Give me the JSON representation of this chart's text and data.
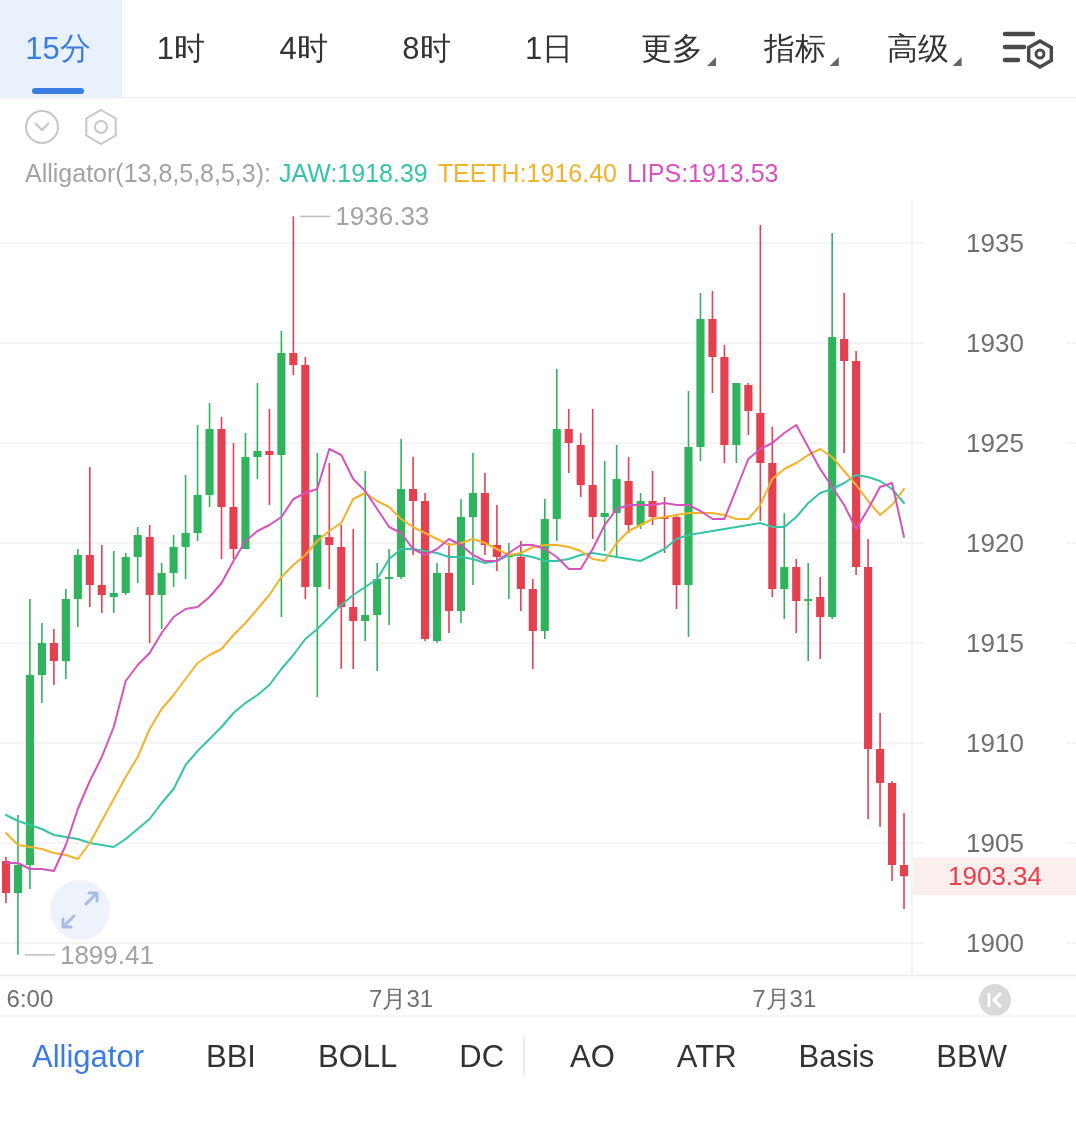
{
  "chart_data": {
    "type": "candlestick",
    "legend_title": "Alligator(13,8,5,8,5,3):",
    "legend": "top",
    "grid": "y",
    "categories": [
      null,
      null,
      "6:00",
      null,
      null,
      null,
      null,
      null,
      null,
      null,
      null,
      null,
      null,
      null,
      null,
      null,
      null,
      null,
      null,
      null,
      null,
      null,
      null,
      null,
      null,
      null,
      null,
      null,
      null,
      null,
      null,
      null,
      null,
      "7月31",
      null,
      null,
      null,
      null,
      null,
      null,
      null,
      null,
      null,
      null,
      null,
      null,
      null,
      null,
      null,
      null,
      null,
      null,
      null,
      null,
      null,
      null,
      null,
      null,
      null,
      null,
      null,
      null,
      null,
      null,
      null,
      "7月31",
      null,
      null,
      null,
      null,
      null,
      null,
      null,
      null,
      null,
      null
    ],
    "ohlc": [
      [
        1904.1,
        1904.3,
        1902.0,
        1902.5
      ],
      [
        1902.5,
        1906.4,
        1899.41,
        1903.9
      ],
      [
        1903.9,
        1917.2,
        1902.7,
        1913.4
      ],
      [
        1913.4,
        1916.0,
        1912.0,
        1915.0
      ],
      [
        1915.0,
        1915.7,
        1912.9,
        1914.1
      ],
      [
        1914.1,
        1917.7,
        1913.2,
        1917.2
      ],
      [
        1917.2,
        1919.7,
        1915.8,
        1919.4
      ],
      [
        1919.4,
        1923.8,
        1916.8,
        1917.9
      ],
      [
        1917.9,
        1919.9,
        1916.5,
        1917.4
      ],
      [
        1917.3,
        1919.6,
        1916.5,
        1917.5
      ],
      [
        1917.5,
        1919.5,
        1917.4,
        1919.3
      ],
      [
        1919.3,
        1920.8,
        1918.0,
        1920.4
      ],
      [
        1920.3,
        1920.9,
        1915.0,
        1917.4
      ],
      [
        1917.4,
        1919.0,
        1915.7,
        1918.5
      ],
      [
        1918.5,
        1920.4,
        1917.8,
        1919.8
      ],
      [
        1919.8,
        1923.4,
        1918.2,
        1920.5
      ],
      [
        1920.5,
        1925.9,
        1920.1,
        1922.4
      ],
      [
        1922.4,
        1927.0,
        1921.8,
        1925.7
      ],
      [
        1925.7,
        1926.3,
        1919.2,
        1921.8
      ],
      [
        1921.8,
        1925.0,
        1919.2,
        1919.7
      ],
      [
        1919.7,
        1925.5,
        1919.7,
        1924.3
      ],
      [
        1924.3,
        1928.0,
        1923.2,
        1924.6
      ],
      [
        1924.6,
        1926.7,
        1921.9,
        1924.4
      ],
      [
        1924.4,
        1930.6,
        1916.3,
        1929.5
      ],
      [
        1929.5,
        1936.33,
        1928.4,
        1928.9
      ],
      [
        1928.9,
        1929.3,
        1917.2,
        1917.8
      ],
      [
        1917.8,
        1924.5,
        1912.3,
        1920.4
      ],
      [
        1920.3,
        1924.0,
        1917.7,
        1919.9
      ],
      [
        1919.8,
        1920.9,
        1913.7,
        1916.8
      ],
      [
        1916.8,
        1920.7,
        1913.7,
        1916.1
      ],
      [
        1916.1,
        1923.6,
        1915.1,
        1916.4
      ],
      [
        1916.4,
        1919.0,
        1913.6,
        1918.2
      ],
      [
        1918.2,
        1919.7,
        1915.9,
        1918.3
      ],
      [
        1918.3,
        1925.2,
        1918.2,
        1922.7
      ],
      [
        1922.7,
        1924.3,
        1919.4,
        1922.1
      ],
      [
        1922.1,
        1922.5,
        1915.1,
        1915.2
      ],
      [
        1915.1,
        1919.0,
        1915.0,
        1918.5
      ],
      [
        1918.5,
        1920.0,
        1915.5,
        1916.6
      ],
      [
        1916.6,
        1922.2,
        1916.0,
        1921.3
      ],
      [
        1921.3,
        1924.5,
        1917.9,
        1922.5
      ],
      [
        1922.5,
        1923.5,
        1919.4,
        1919.9
      ],
      [
        1919.9,
        1921.9,
        1918.6,
        1919.3
      ],
      [
        1919.3,
        1920.0,
        1917.2,
        1919.4
      ],
      [
        1919.3,
        1920.1,
        1916.6,
        1917.7
      ],
      [
        1917.7,
        1918.2,
        1913.7,
        1915.6
      ],
      [
        1915.6,
        1922.2,
        1915.2,
        1921.2
      ],
      [
        1921.2,
        1928.7,
        1920.1,
        1925.7
      ],
      [
        1925.7,
        1926.7,
        1923.5,
        1925.0
      ],
      [
        1924.9,
        1925.5,
        1922.3,
        1922.9
      ],
      [
        1922.9,
        1926.7,
        1920.2,
        1921.3
      ],
      [
        1921.3,
        1924.1,
        1919.6,
        1921.5
      ],
      [
        1921.5,
        1924.9,
        1919.3,
        1923.2
      ],
      [
        1923.1,
        1924.3,
        1920.5,
        1920.9
      ],
      [
        1920.9,
        1922.5,
        1920.7,
        1922.1
      ],
      [
        1922.1,
        1923.6,
        1920.9,
        1921.3
      ],
      [
        1921.3,
        1922.3,
        1919.5,
        1921.2
      ],
      [
        1921.3,
        1921.4,
        1916.7,
        1917.9
      ],
      [
        1917.9,
        1927.6,
        1915.3,
        1924.8
      ],
      [
        1924.8,
        1932.5,
        1924.1,
        1931.2
      ],
      [
        1931.2,
        1932.6,
        1927.5,
        1929.3
      ],
      [
        1929.3,
        1929.9,
        1924.0,
        1924.9
      ],
      [
        1924.9,
        1928.0,
        1924.0,
        1928.0
      ],
      [
        1927.9,
        1928.0,
        1925.4,
        1926.6
      ],
      [
        1926.5,
        1935.9,
        1921.1,
        1924.0
      ],
      [
        1924.0,
        1925.8,
        1917.3,
        1917.7
      ],
      [
        1917.7,
        1921.5,
        1916.2,
        1918.8
      ],
      [
        1918.8,
        1919.2,
        1915.5,
        1917.1
      ],
      [
        1917.1,
        1919.0,
        1914.1,
        1917.2
      ],
      [
        1917.3,
        1918.3,
        1914.2,
        1916.3
      ],
      [
        1916.3,
        1935.5,
        1916.2,
        1930.3
      ],
      [
        1930.2,
        1932.5,
        1924.5,
        1929.1
      ],
      [
        1929.1,
        1929.6,
        1918.4,
        1918.8
      ],
      [
        1918.8,
        1920.2,
        1906.2,
        1909.7
      ],
      [
        1909.7,
        1911.5,
        1905.8,
        1908.0
      ],
      [
        1908.0,
        1908.1,
        1903.1,
        1903.9
      ],
      [
        1903.9,
        1906.5,
        1901.7,
        1903.34
      ]
    ],
    "colors": [
      "#e5404f",
      "#2fb35d",
      "#2fb35d",
      "#2fb35d",
      "#e5404f",
      "#2fb35d",
      "#2fb35d",
      "#e5404f",
      "#e5404f",
      "#2fb35d",
      "#2fb35d",
      "#2fb35d",
      "#e5404f",
      "#2fb35d",
      "#2fb35d",
      "#2fb35d",
      "#2fb35d",
      "#2fb35d",
      "#e5404f",
      "#e5404f",
      "#2fb35d",
      "#2fb35d",
      "#e5404f",
      "#2fb35d",
      "#e5404f",
      "#e5404f",
      "#2fb35d",
      "#e5404f",
      "#e5404f",
      "#e5404f",
      "#2fb35d",
      "#2fb35d",
      "#2fb35d",
      "#2fb35d",
      "#e5404f",
      "#e5404f",
      "#2fb35d",
      "#e5404f",
      "#2fb35d",
      "#2fb35d",
      "#e5404f",
      "#e5404f",
      "#2fb35d",
      "#e5404f",
      "#e5404f",
      "#2fb35d",
      "#2fb35d",
      "#e5404f",
      "#e5404f",
      "#e5404f",
      "#2fb35d",
      "#2fb35d",
      "#e5404f",
      "#2fb35d",
      "#e5404f",
      "#e5404f",
      "#e5404f",
      "#2fb35d",
      "#2fb35d",
      "#e5404f",
      "#e5404f",
      "#2fb35d",
      "#e5404f",
      "#e5404f",
      "#e5404f",
      "#2fb35d",
      "#e5404f",
      "#2fb35d",
      "#e5404f",
      "#2fb35d",
      "#e5404f",
      "#e5404f",
      "#e5404f",
      "#e5404f",
      "#e5404f",
      "#e5404f"
    ],
    "series": [
      {
        "name": "JAW:1918.39",
        "type": "line",
        "color": "#35c4a7",
        "values": [
          1906.4,
          1906.1,
          1905.9,
          1905.7,
          1905.4,
          1905.3,
          1905.2,
          1905.0,
          1904.9,
          1904.8,
          1905.2,
          1905.7,
          1906.2,
          1907.0,
          1907.7,
          1908.9,
          1909.6,
          1910.2,
          1910.8,
          1911.5,
          1912.0,
          1912.4,
          1912.9,
          1913.7,
          1914.4,
          1915.2,
          1915.7,
          1916.3,
          1916.9,
          1917.4,
          1917.8,
          1918.2,
          1919.2,
          1919.7,
          1919.7,
          1919.6,
          1919.5,
          1919.3,
          1919.3,
          1919.2,
          1919.0,
          1919.1,
          1919.4,
          1919.4,
          1919.3,
          1919.1,
          1919.1,
          1919.2,
          1919.4,
          1919.5,
          1919.4,
          1919.3,
          1919.2,
          1919.1,
          1919.4,
          1919.7,
          1920.2,
          1920.4,
          1920.5,
          1920.6,
          1920.7,
          1920.8,
          1920.9,
          1921.0,
          1920.8,
          1920.8,
          1921.3,
          1922.0,
          1922.5,
          1922.7,
          1923.0,
          1923.4,
          1923.3,
          1923.1,
          1922.7,
          1922.0
        ]
      },
      {
        "name": "TEETH:1916.40",
        "type": "line",
        "color": "#f2b22a",
        "values": [
          1905.5,
          1904.9,
          1904.8,
          1904.7,
          1904.5,
          1904.4,
          1904.2,
          1905.0,
          1906.1,
          1907.2,
          1908.3,
          1909.3,
          1910.7,
          1911.7,
          1912.4,
          1913.2,
          1914.0,
          1914.4,
          1914.7,
          1915.4,
          1916.0,
          1916.7,
          1917.4,
          1918.3,
          1918.9,
          1919.4,
          1920.1,
          1920.6,
          1921.0,
          1922.2,
          1922.5,
          1922.1,
          1921.8,
          1921.2,
          1920.8,
          1920.5,
          1920.2,
          1919.9,
          1920.0,
          1920.2,
          1920.0,
          1919.7,
          1919.4,
          1919.5,
          1919.8,
          1919.9,
          1919.9,
          1919.8,
          1919.6,
          1919.2,
          1919.1,
          1920.0,
          1920.6,
          1920.9,
          1921.2,
          1921.3,
          1921.4,
          1921.5,
          1921.5,
          1921.5,
          1921.4,
          1921.2,
          1921.2,
          1921.9,
          1923.2,
          1923.7,
          1924.0,
          1924.4,
          1924.7,
          1924.3,
          1923.6,
          1922.9,
          1922.1,
          1921.4,
          1921.9,
          1922.7
        ]
      },
      {
        "name": "LIPS:1913.53",
        "type": "line",
        "color": "#d652bd",
        "values": [
          1904.0,
          1904.0,
          1903.7,
          1903.7,
          1903.6,
          1904.9,
          1906.7,
          1908.1,
          1909.3,
          1910.8,
          1913.1,
          1913.9,
          1914.5,
          1915.5,
          1916.3,
          1916.7,
          1916.8,
          1917.3,
          1918.0,
          1919.1,
          1920.1,
          1920.6,
          1920.9,
          1921.3,
          1922.2,
          1922.5,
          1922.7,
          1924.7,
          1924.4,
          1923.2,
          1922.6,
          1921.7,
          1920.8,
          1920.5,
          1919.7,
          1919.4,
          1919.7,
          1920.2,
          1919.9,
          1919.4,
          1919.1,
          1919.1,
          1919.5,
          1919.9,
          1919.9,
          1919.7,
          1919.3,
          1918.7,
          1918.7,
          1919.7,
          1920.9,
          1921.7,
          1921.9,
          1921.9,
          1921.9,
          1922.0,
          1921.9,
          1921.9,
          1921.6,
          1921.2,
          1921.2,
          1922.7,
          1924.2,
          1924.7,
          1925.0,
          1925.5,
          1925.9,
          1924.8,
          1923.7,
          1922.8,
          1921.9,
          1920.7,
          1921.7,
          1922.8,
          1923.0,
          1920.3
        ]
      }
    ],
    "ylim": [
      1898.4,
      1937.2
    ],
    "yticks": [
      1900,
      1905,
      1910,
      1915,
      1920,
      1925,
      1930,
      1935
    ],
    "annotations": [
      "15分",
      "1时",
      "4时",
      "8时",
      "1日",
      "更多",
      "指标",
      "高级",
      "Alligator",
      "BBI",
      "BOLL",
      "DC",
      "AO",
      "ATR",
      "Basis",
      "BBW",
      "1936.33",
      "1899.41",
      "1903.34"
    ]
  }
}
